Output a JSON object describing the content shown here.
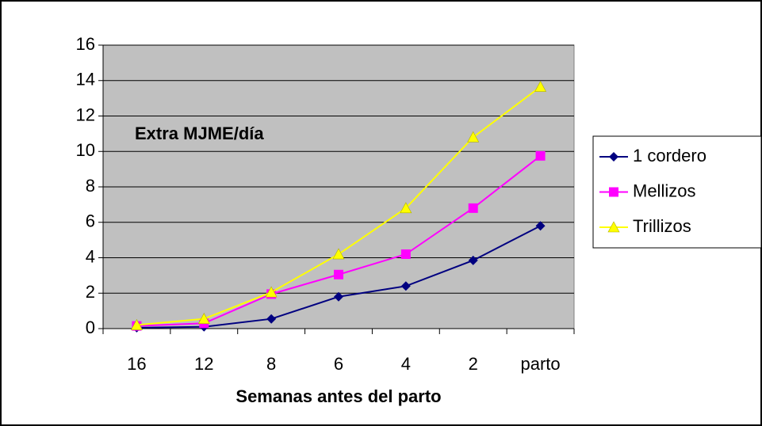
{
  "chart_data": {
    "type": "line",
    "annotation": "Extra MJME/día",
    "x_label": "Semanas antes del parto",
    "categories": [
      "16",
      "12",
      "8",
      "6",
      "4",
      "2",
      "parto"
    ],
    "series": [
      {
        "name": "1 cordero",
        "color": "#000080",
        "marker": "diamond",
        "values": [
          0.05,
          0.1,
          0.55,
          1.8,
          2.4,
          3.85,
          5.8
        ]
      },
      {
        "name": "Mellizos",
        "color": "#ff00ff",
        "marker": "square",
        "values": [
          0.15,
          0.3,
          1.95,
          3.05,
          4.2,
          6.8,
          9.75
        ]
      },
      {
        "name": "Trillizos",
        "color": "#ffff00",
        "marker": "triangle",
        "values": [
          0.2,
          0.55,
          2.05,
          4.2,
          6.8,
          10.8,
          13.65
        ]
      }
    ],
    "ylim": [
      0,
      16
    ],
    "yticks": [
      0,
      2,
      4,
      6,
      8,
      10,
      12,
      14,
      16
    ],
    "grid": true,
    "legend": "right"
  }
}
